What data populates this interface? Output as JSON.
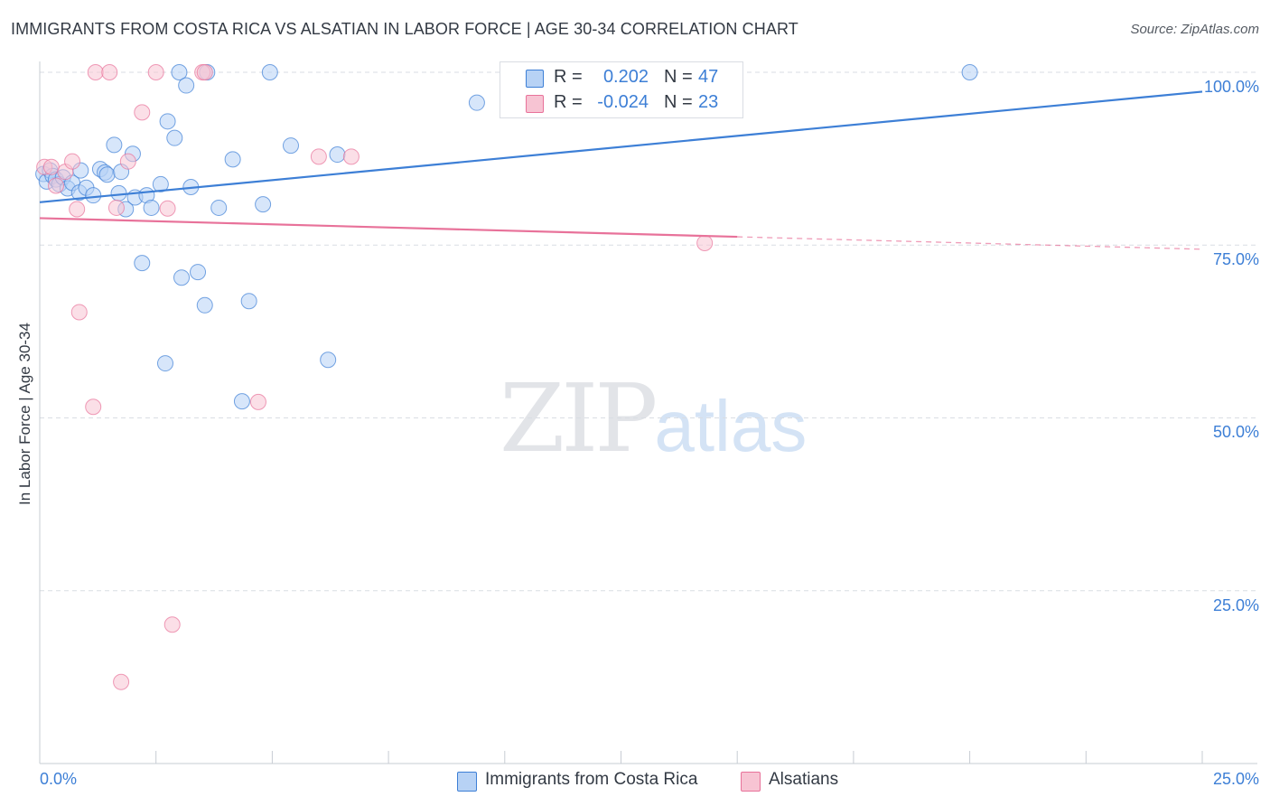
{
  "title": "IMMIGRANTS FROM COSTA RICA VS ALSATIAN IN LABOR FORCE | AGE 30-34 CORRELATION CHART",
  "source": "Source: ZipAtlas.com",
  "legend": {
    "series1": {
      "r_label": "R =",
      "r_value": "0.202",
      "n_label": "N =",
      "n_value": "47"
    },
    "series2": {
      "r_label": "R =",
      "r_value": "-0.024",
      "n_label": "N =",
      "n_value": "23"
    }
  },
  "bottom_legend": [
    "Immigrants from Costa Rica",
    "Alsatians"
  ],
  "watermark": {
    "zip": "ZIP",
    "atlas": "atlas"
  },
  "colors": {
    "blue": "#3d7fd6",
    "blue_fill": "#b7d2f5",
    "pink": "#e8729a",
    "pink_fill": "#f7c4d3",
    "grid": "#d9dde3"
  },
  "chart_data": {
    "type": "scatter",
    "title": "IMMIGRANTS FROM COSTA RICA VS ALSATIAN IN LABOR FORCE | AGE 30-34 CORRELATION CHART",
    "xlabel": "",
    "ylabel": "In Labor Force | Age 30-34",
    "xlim": [
      0,
      25
    ],
    "ylim": [
      0,
      100
    ],
    "x_tick_labels": [
      "0.0%",
      "25.0%"
    ],
    "y_ticks": [
      25,
      50,
      75,
      100
    ],
    "y_tick_labels": [
      "25.0%",
      "50.0%",
      "75.0%",
      "100.0%"
    ],
    "series": [
      {
        "name": "Immigrants from Costa Rica",
        "color": "#3d7fd6",
        "points": [
          [
            0.08,
            85.3
          ],
          [
            0.15,
            84.2
          ],
          [
            0.22,
            85.8
          ],
          [
            0.28,
            85.0
          ],
          [
            0.35,
            84.5
          ],
          [
            0.42,
            83.8
          ],
          [
            0.5,
            84.8
          ],
          [
            0.6,
            83.2
          ],
          [
            0.7,
            84.0
          ],
          [
            0.85,
            82.6
          ],
          [
            0.88,
            85.8
          ],
          [
            1.0,
            83.3
          ],
          [
            1.15,
            82.2
          ],
          [
            1.3,
            86.0
          ],
          [
            1.4,
            85.5
          ],
          [
            1.45,
            85.2
          ],
          [
            1.6,
            89.5
          ],
          [
            1.7,
            82.5
          ],
          [
            1.75,
            85.6
          ],
          [
            1.85,
            80.2
          ],
          [
            2.0,
            88.2
          ],
          [
            2.05,
            81.9
          ],
          [
            2.2,
            72.4
          ],
          [
            2.3,
            82.2
          ],
          [
            2.4,
            80.4
          ],
          [
            2.6,
            83.8
          ],
          [
            2.7,
            57.9
          ],
          [
            2.75,
            92.9
          ],
          [
            2.9,
            90.5
          ],
          [
            3.0,
            100.0
          ],
          [
            3.05,
            70.3
          ],
          [
            3.15,
            98.1
          ],
          [
            3.25,
            83.4
          ],
          [
            3.4,
            71.1
          ],
          [
            3.55,
            66.3
          ],
          [
            3.6,
            100.0
          ],
          [
            3.85,
            80.4
          ],
          [
            4.15,
            87.4
          ],
          [
            4.35,
            52.4
          ],
          [
            4.5,
            66.9
          ],
          [
            4.8,
            80.9
          ],
          [
            4.95,
            100.0
          ],
          [
            5.4,
            89.4
          ],
          [
            6.2,
            58.4
          ],
          [
            6.4,
            88.1
          ],
          [
            9.4,
            95.6
          ],
          [
            20.0,
            100.0
          ]
        ],
        "trend": {
          "x": [
            0,
            25
          ],
          "y": [
            81.2,
            97.2
          ]
        }
      },
      {
        "name": "Alsatians",
        "color": "#e8729a",
        "points": [
          [
            0.1,
            86.3
          ],
          [
            0.25,
            86.3
          ],
          [
            0.35,
            83.6
          ],
          [
            0.55,
            85.6
          ],
          [
            0.7,
            87.1
          ],
          [
            0.8,
            80.2
          ],
          [
            0.85,
            65.3
          ],
          [
            1.15,
            51.6
          ],
          [
            1.2,
            100.0
          ],
          [
            1.5,
            100.0
          ],
          [
            1.65,
            80.4
          ],
          [
            1.75,
            11.8
          ],
          [
            1.9,
            87.1
          ],
          [
            2.2,
            94.2
          ],
          [
            2.5,
            100.0
          ],
          [
            2.75,
            80.3
          ],
          [
            2.85,
            20.1
          ],
          [
            3.5,
            100.0
          ],
          [
            3.55,
            100.0
          ],
          [
            4.7,
            52.3
          ],
          [
            6.0,
            87.8
          ],
          [
            6.7,
            87.8
          ],
          [
            14.3,
            75.3
          ]
        ],
        "trend": {
          "x": [
            0,
            15
          ],
          "y": [
            78.9,
            76.2
          ]
        },
        "trend_dashed": {
          "x": [
            15,
            25
          ],
          "y": [
            76.2,
            74.4
          ]
        }
      }
    ]
  }
}
